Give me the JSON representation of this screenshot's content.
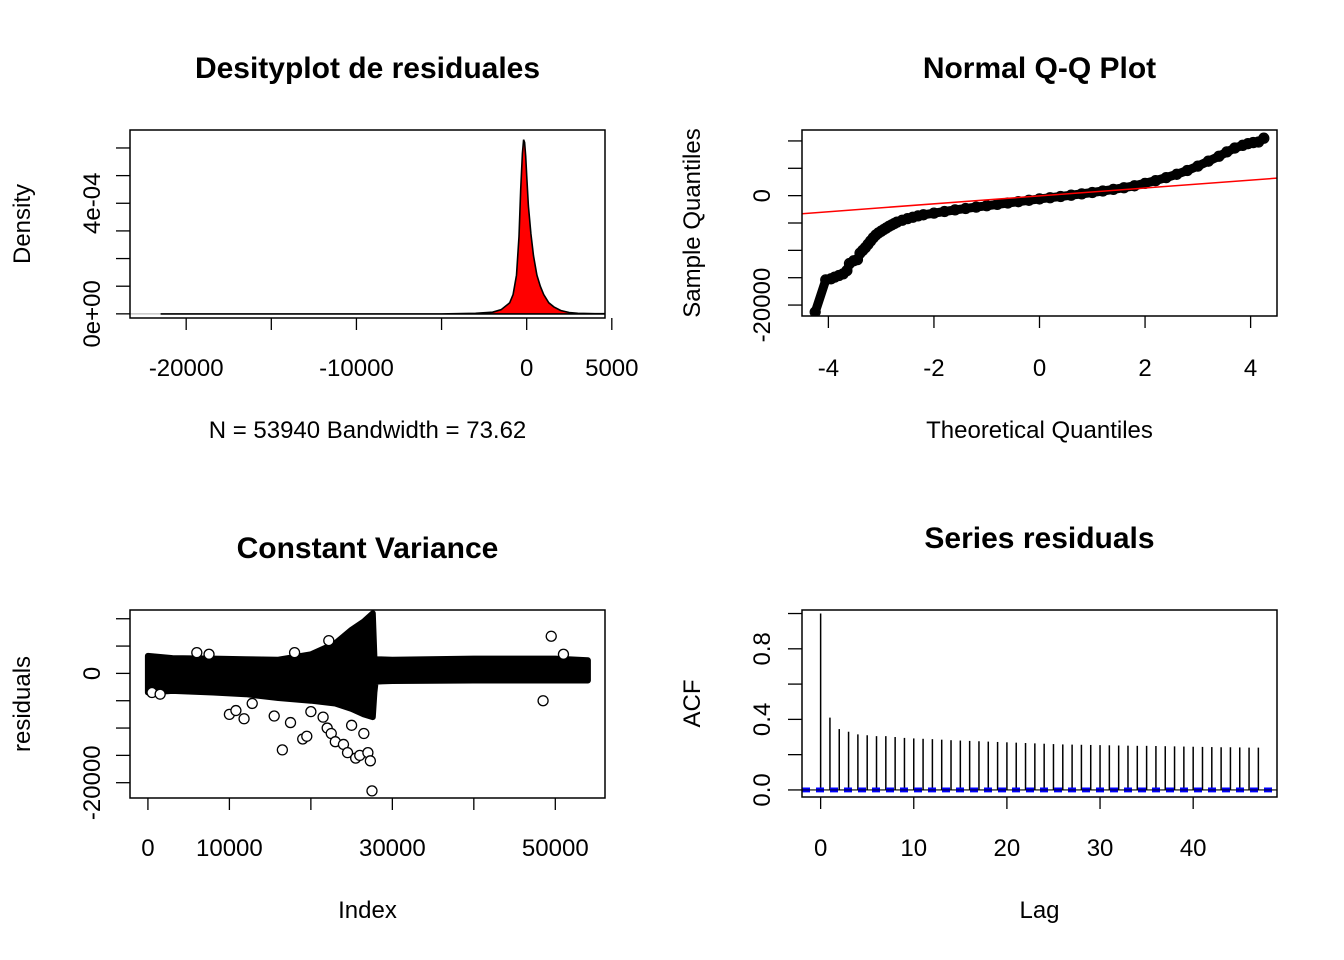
{
  "chart_data": [
    {
      "id": "density",
      "type": "area",
      "title": "Desityplot de residuales",
      "xlabel": "N = 53940   Bandwidth = 73.62",
      "ylabel": "Density",
      "xlim": [
        -23300,
        4600
      ],
      "ylim": [
        -1.5e-05,
        0.000665
      ],
      "x_ticks": [
        -20000,
        -15000,
        -10000,
        -5000,
        0,
        5000
      ],
      "x_tick_labels": [
        "-20000",
        "",
        "-10000",
        "",
        "0",
        "5000"
      ],
      "y_ticks": [
        0,
        0.0001,
        0.0002,
        0.0003,
        0.0004,
        0.0005,
        0.0006
      ],
      "y_tick_labels": [
        "0e+00",
        "",
        "",
        "",
        "4e-04",
        "",
        ""
      ],
      "fill_color": "#ff0000",
      "curve": [
        [
          -21500,
          0
        ],
        [
          -5000,
          0
        ],
        [
          -3000,
          2e-06
        ],
        [
          -2000,
          6e-06
        ],
        [
          -1500,
          1.5e-05
        ],
        [
          -1000,
          4e-05
        ],
        [
          -800,
          7e-05
        ],
        [
          -600,
          0.00014
        ],
        [
          -450,
          0.00028
        ],
        [
          -350,
          0.00045
        ],
        [
          -250,
          0.00058
        ],
        [
          -180,
          0.00063
        ],
        [
          -120,
          0.00062
        ],
        [
          -60,
          0.00057
        ],
        [
          0,
          0.0005
        ],
        [
          100,
          0.00039
        ],
        [
          250,
          0.00029
        ],
        [
          400,
          0.00021
        ],
        [
          600,
          0.00014
        ],
        [
          800,
          0.0001
        ],
        [
          1000,
          7e-05
        ],
        [
          1300,
          4e-05
        ],
        [
          1600,
          2.5e-05
        ],
        [
          2000,
          1.2e-05
        ],
        [
          2500,
          5e-06
        ],
        [
          3000,
          2e-06
        ],
        [
          4000,
          5e-07
        ],
        [
          10000,
          0
        ]
      ]
    },
    {
      "id": "qq",
      "type": "scatter",
      "title": "Normal Q-Q Plot",
      "xlabel": "Theoretical Quantiles",
      "ylabel": "Sample Quantiles",
      "xlim": [
        -4.5,
        4.5
      ],
      "ylim": [
        -22000,
        12000
      ],
      "x_ticks": [
        -4,
        -2,
        0,
        2,
        4
      ],
      "x_tick_labels": [
        "-4",
        "-2",
        "0",
        "2",
        "4"
      ],
      "y_ticks": [
        -20000,
        -15000,
        -10000,
        -5000,
        0,
        5000,
        10000
      ],
      "y_tick_labels": [
        "-20000",
        "",
        "",
        "",
        "0",
        "",
        ""
      ],
      "qqline": {
        "x": [
          -4.5,
          4.5
        ],
        "y": [
          -3300,
          3200
        ],
        "color": "#ff0000"
      },
      "points": [
        [
          -4.25,
          -21300
        ],
        [
          -4.05,
          -15400
        ],
        [
          -3.95,
          -15200
        ],
        [
          -3.88,
          -14900
        ],
        [
          -3.8,
          -14600
        ],
        [
          -3.72,
          -14300
        ],
        [
          -3.65,
          -13700
        ],
        [
          -3.6,
          -12400
        ],
        [
          -3.52,
          -11900
        ],
        [
          -3.45,
          -11700
        ],
        [
          -3.4,
          -10500
        ],
        [
          -3.35,
          -10000
        ],
        [
          -3.3,
          -9500
        ],
        [
          -3.25,
          -8900
        ],
        [
          -3.2,
          -8300
        ],
        [
          -3.15,
          -7700
        ],
        [
          -3.1,
          -7200
        ],
        [
          -3.05,
          -6800
        ],
        [
          -3.0,
          -6500
        ],
        [
          -2.95,
          -6200
        ],
        [
          -2.9,
          -5900
        ],
        [
          -2.85,
          -5600
        ],
        [
          -2.8,
          -5350
        ],
        [
          -2.75,
          -5100
        ],
        [
          -2.7,
          -4850
        ],
        [
          -2.6,
          -4500
        ],
        [
          -2.5,
          -4200
        ],
        [
          -2.4,
          -3950
        ],
        [
          -2.3,
          -3700
        ],
        [
          -2.2,
          -3500
        ],
        [
          -2.0,
          -3200
        ],
        [
          -1.8,
          -2900
        ],
        [
          -1.6,
          -2600
        ],
        [
          -1.4,
          -2350
        ],
        [
          -1.2,
          -2100
        ],
        [
          -1.0,
          -1850
        ],
        [
          -0.8,
          -1600
        ],
        [
          -0.6,
          -1350
        ],
        [
          -0.4,
          -1100
        ],
        [
          -0.2,
          -850
        ],
        [
          0.0,
          -600
        ],
        [
          0.2,
          -380
        ],
        [
          0.4,
          -150
        ],
        [
          0.6,
          80
        ],
        [
          0.8,
          320
        ],
        [
          1.0,
          580
        ],
        [
          1.2,
          850
        ],
        [
          1.4,
          1150
        ],
        [
          1.6,
          1450
        ],
        [
          1.8,
          1800
        ],
        [
          2.0,
          2250
        ],
        [
          2.2,
          2750
        ],
        [
          2.4,
          3300
        ],
        [
          2.6,
          3900
        ],
        [
          2.8,
          4600
        ],
        [
          3.0,
          5400
        ],
        [
          3.2,
          6300
        ],
        [
          3.4,
          7200
        ],
        [
          3.55,
          8000
        ],
        [
          3.7,
          8700
        ],
        [
          3.85,
          9200
        ],
        [
          3.95,
          9500
        ],
        [
          4.05,
          9700
        ],
        [
          4.15,
          9800
        ],
        [
          4.25,
          10500
        ]
      ]
    },
    {
      "id": "variance",
      "type": "scatter",
      "title": "Constant Variance",
      "xlabel": "Index",
      "ylabel": "residuals",
      "xlim": [
        -2200,
        56100
      ],
      "ylim": [
        -22800,
        11600
      ],
      "x_ticks": [
        0,
        10000,
        20000,
        30000,
        40000,
        50000
      ],
      "x_tick_labels": [
        "0",
        "10000",
        "",
        "30000",
        "",
        "50000"
      ],
      "y_ticks": [
        -20000,
        -15000,
        -10000,
        -5000,
        0,
        5000,
        10000
      ],
      "y_tick_labels": [
        "-20000",
        "",
        "",
        "",
        "0",
        "",
        ""
      ],
      "band": [
        [
          0,
          -3500,
          3200
        ],
        [
          3000,
          -3200,
          2800
        ],
        [
          8000,
          -3500,
          2700
        ],
        [
          12000,
          -3800,
          2600
        ],
        [
          16000,
          -4500,
          2500
        ],
        [
          20000,
          -5000,
          3500
        ],
        [
          23000,
          -5500,
          5500
        ],
        [
          25000,
          -6500,
          8000
        ],
        [
          26500,
          -7500,
          9500
        ],
        [
          27600,
          -8000,
          11000
        ],
        [
          27800,
          -3500,
          3000
        ],
        [
          27950,
          -1500,
          2600
        ],
        [
          30000,
          -1400,
          2500
        ],
        [
          40000,
          -1300,
          2700
        ],
        [
          50000,
          -1300,
          2700
        ],
        [
          54000,
          -1300,
          2400
        ]
      ],
      "points": [
        [
          500,
          -3500
        ],
        [
          1500,
          -3800
        ],
        [
          6000,
          3800
        ],
        [
          7500,
          3500
        ],
        [
          10000,
          -7500
        ],
        [
          10800,
          -6800
        ],
        [
          11800,
          -8300
        ],
        [
          12800,
          -5500
        ],
        [
          15500,
          -7800
        ],
        [
          16500,
          -14000
        ],
        [
          17500,
          -9000
        ],
        [
          18000,
          3800
        ],
        [
          19000,
          -12000
        ],
        [
          19500,
          -11500
        ],
        [
          20000,
          -7000
        ],
        [
          21500,
          -8000
        ],
        [
          22000,
          -10000
        ],
        [
          22200,
          6000
        ],
        [
          22500,
          -11000
        ],
        [
          23000,
          -12500
        ],
        [
          24000,
          -13000
        ],
        [
          24500,
          -14500
        ],
        [
          25000,
          -9500
        ],
        [
          25500,
          -15500
        ],
        [
          26000,
          -15000
        ],
        [
          26500,
          -11000
        ],
        [
          27000,
          -14500
        ],
        [
          27300,
          -16000
        ],
        [
          27500,
          -21500
        ],
        [
          48500,
          -5000
        ],
        [
          49500,
          6800
        ],
        [
          51000,
          3500
        ]
      ]
    },
    {
      "id": "acf",
      "type": "bar",
      "title": "Series  residuals",
      "xlabel": "Lag",
      "ylabel": "ACF",
      "xlim": [
        -2,
        49
      ],
      "ylim": [
        -0.04,
        1.02
      ],
      "x_ticks": [
        0,
        10,
        20,
        30,
        40
      ],
      "x_tick_labels": [
        "0",
        "10",
        "20",
        "30",
        "40"
      ],
      "y_ticks": [
        0,
        0.2,
        0.4,
        0.6,
        0.8,
        1.0
      ],
      "y_tick_labels": [
        "0.0",
        "",
        "0.4",
        "",
        "0.8",
        ""
      ],
      "ci": 0.0084,
      "ci_color": "#0000ff",
      "lags": [
        0,
        1,
        2,
        3,
        4,
        5,
        6,
        7,
        8,
        9,
        10,
        11,
        12,
        13,
        14,
        15,
        16,
        17,
        18,
        19,
        20,
        21,
        22,
        23,
        24,
        25,
        26,
        27,
        28,
        29,
        30,
        31,
        32,
        33,
        34,
        35,
        36,
        37,
        38,
        39,
        40,
        41,
        42,
        43,
        44,
        45,
        46,
        47
      ],
      "values": [
        1.0,
        0.41,
        0.345,
        0.33,
        0.315,
        0.31,
        0.305,
        0.305,
        0.3,
        0.295,
        0.292,
        0.29,
        0.288,
        0.285,
        0.282,
        0.28,
        0.278,
        0.276,
        0.274,
        0.272,
        0.27,
        0.268,
        0.266,
        0.264,
        0.262,
        0.26,
        0.258,
        0.257,
        0.256,
        0.255,
        0.254,
        0.253,
        0.252,
        0.251,
        0.25,
        0.25,
        0.249,
        0.248,
        0.247,
        0.246,
        0.245,
        0.244,
        0.243,
        0.242,
        0.242,
        0.241,
        0.24,
        0.24
      ]
    }
  ]
}
